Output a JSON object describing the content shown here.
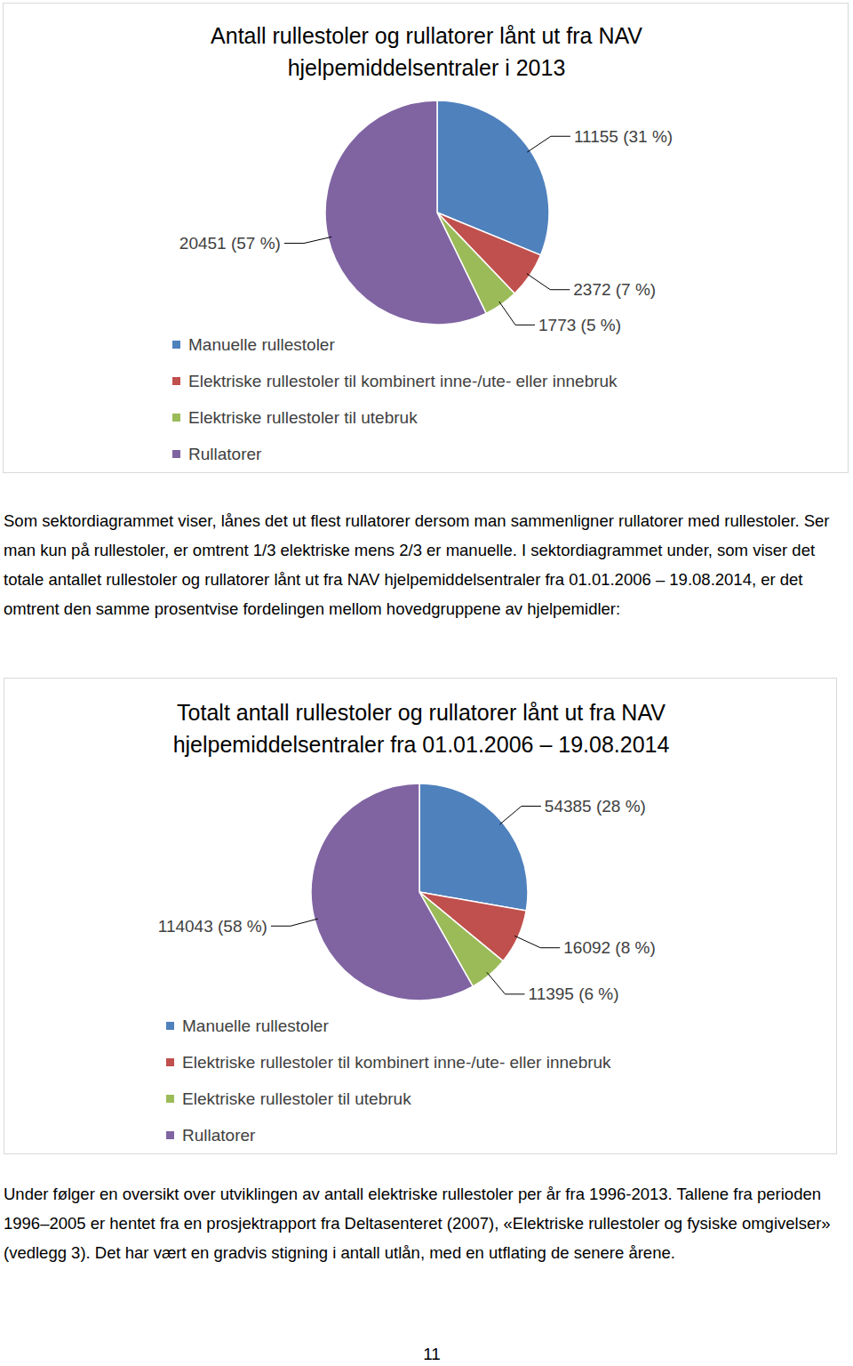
{
  "chart_data": [
    {
      "type": "pie",
      "title": "Antall rullestoler og rullatorer lånt ut fra NAV\nhjelpemiddelsentraler i 2013",
      "categories": [
        "Manuelle rullestoler",
        "Elektriske rullestoler til kombinert inne-/ute- eller innebruk",
        "Elektriske rullestoler til utebruk",
        "Rullatorer"
      ],
      "values": [
        11155,
        2372,
        1773,
        20451
      ],
      "value_labels": [
        "11155 (31 %)",
        "2372 (7 %)",
        "1773 (5 %)",
        "20451 (57 %)"
      ],
      "colors": [
        "#4f81bd",
        "#c0504d",
        "#9bbb59",
        "#8064a2"
      ],
      "legend": "bottom",
      "data_labels": true
    },
    {
      "type": "pie",
      "title": "Totalt antall rullestoler og rullatorer lånt ut fra NAV\nhjelpemiddelsentraler fra 01.01.2006 – 19.08.2014",
      "categories": [
        "Manuelle rullestoler",
        "Elektriske rullestoler til kombinert inne-/ute- eller innebruk",
        "Elektriske rullestoler til utebruk",
        "Rullatorer"
      ],
      "values": [
        54385,
        16092,
        11395,
        114043
      ],
      "value_labels": [
        "54385 (28 %)",
        "16092 (8 %)",
        "11395 (6 %)",
        "114043 (58 %)"
      ],
      "colors": [
        "#4f81bd",
        "#c0504d",
        "#9bbb59",
        "#8064a2"
      ],
      "legend": "bottom",
      "data_labels": true
    }
  ],
  "paragraphs": [
    "Som sektordiagrammet viser, lånes det ut flest rullatorer dersom man sammenligner rullatorer med rullestoler. Ser man kun på rullestoler, er omtrent 1/3 elektriske mens 2/3 er manuelle. I sektordiagrammet under, som viser det totale antallet rullestoler og rullatorer lånt ut fra NAV hjelpemiddelsentraler fra 01.01.2006 – 19.08.2014, er det omtrent den samme prosentvise fordelingen mellom hovedgruppene av hjelpemidler:",
    "Under følger en oversikt over utviklingen av antall elektriske rullestoler per år fra 1996-2013. Tallene fra perioden 1996–2005 er hentet fra en prosjektrapport fra Deltasenteret (2007), «Elektriske rullestoler og fysiske omgivelser» (vedlegg 3). Det har vært en gradvis stigning i antall utlån, med en utflating de senere årene."
  ],
  "page_number": "11"
}
